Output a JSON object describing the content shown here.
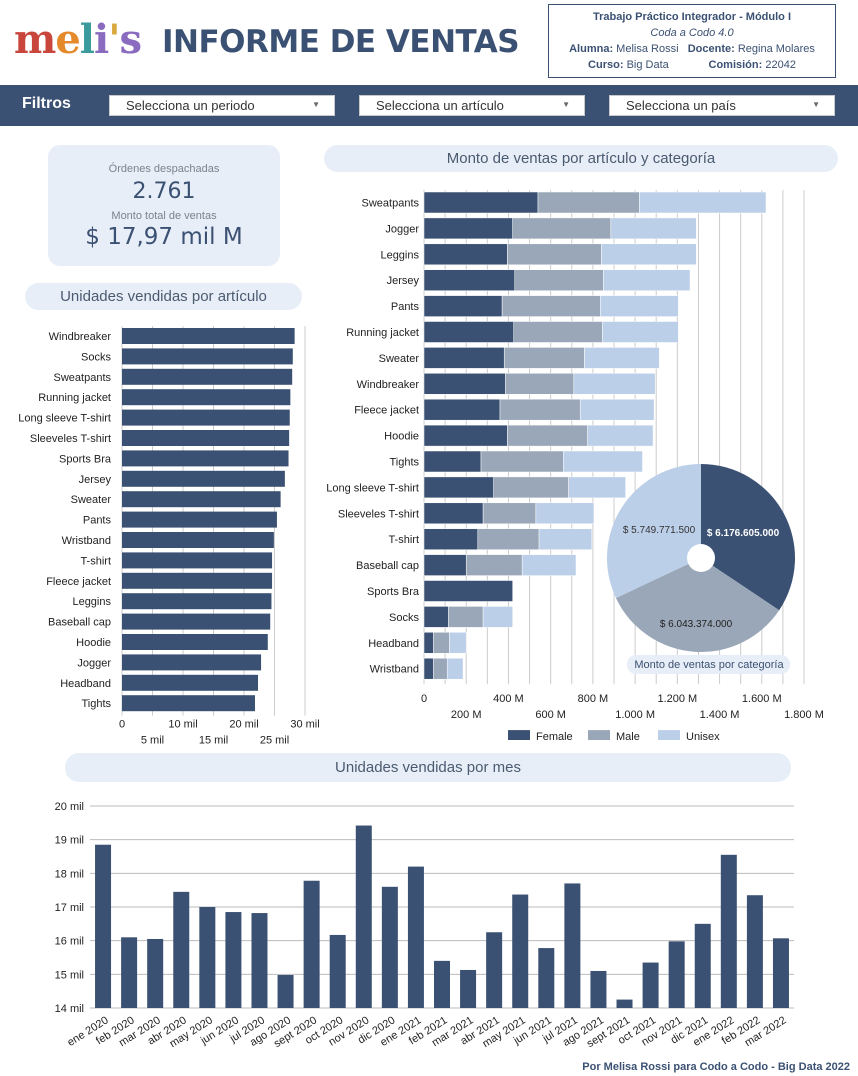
{
  "header": {
    "logo_text": "meli's",
    "title": "INFORME DE VENTAS",
    "info": {
      "line1": "Trabajo Práctico Integrador - Módulo I",
      "line2": "Coda a Codo 4.0",
      "alumna_label": "Alumna:",
      "alumna": "Melisa Rossi",
      "docente_label": "Docente:",
      "docente": "Regina Molares",
      "curso_label": "Curso:",
      "curso": "Big Data",
      "comision_label": "Comisión:",
      "comision": "22042"
    }
  },
  "filters": {
    "title": "Filtros",
    "period": "Selecciona un periodo",
    "article": "Selecciona un artículo",
    "country": "Selecciona un país"
  },
  "kpis": {
    "orders_label": "Órdenes despachadas",
    "orders_value": "2.761",
    "sales_label": "Monto total de ventas",
    "sales_value": "$ 17,97 mil M"
  },
  "colors": {
    "female": "#3b5173",
    "male": "#9aa7b8",
    "unisex": "#bccfe9",
    "accent": "#3b5173"
  },
  "chart_data": [
    {
      "type": "bar",
      "title": "Unidades vendidas por artículo",
      "orientation": "horizontal",
      "categories": [
        "Windbreaker",
        "Socks",
        "Sweatpants",
        "Running jacket",
        "Long sleeve T-shirt",
        "Sleeveles T-shirt",
        "Sports Bra",
        "Jersey",
        "Sweater",
        "Pants",
        "Wristband",
        "T-shirt",
        "Fleece jacket",
        "Leggins",
        "Baseball cap",
        "Hoodie",
        "Jogger",
        "Headband",
        "Tights"
      ],
      "values": [
        28300,
        28000,
        27900,
        27600,
        27500,
        27400,
        27300,
        26700,
        26000,
        25400,
        24900,
        24600,
        24600,
        24500,
        24300,
        23900,
        22800,
        22300,
        21800
      ],
      "xlim": [
        0,
        30000
      ],
      "ticks_upper": [
        "0",
        "10 mil",
        "20 mil",
        "30 mil"
      ],
      "ticks_lower": [
        "5 mil",
        "15 mil",
        "25 mil"
      ]
    },
    {
      "type": "bar",
      "stacked": true,
      "orientation": "horizontal",
      "title": "Monto de ventas por artículo y categoría",
      "categories": [
        "Sweatpants",
        "Jogger",
        "Leggins",
        "Jersey",
        "Pants",
        "Running jacket",
        "Sweater",
        "Windbreaker",
        "Fleece jacket",
        "Hoodie",
        "Tights",
        "Long sleeve T-shirt",
        "Sleeveles T-shirt",
        "T-shirt",
        "Baseball cap",
        "Sports Bra",
        "Socks",
        "Headband",
        "Wristband"
      ],
      "series": [
        {
          "name": "Female",
          "values": [
            540,
            420,
            395,
            430,
            370,
            425,
            380,
            385,
            360,
            395,
            270,
            330,
            280,
            255,
            200,
            420,
            115,
            45,
            45
          ]
        },
        {
          "name": "Male",
          "values": [
            480,
            465,
            445,
            420,
            465,
            420,
            380,
            325,
            380,
            380,
            390,
            355,
            250,
            290,
            265,
            0,
            165,
            75,
            65
          ]
        },
        {
          "name": "Unisex",
          "values": [
            600,
            405,
            450,
            410,
            370,
            360,
            355,
            385,
            350,
            310,
            375,
            270,
            275,
            250,
            255,
            0,
            140,
            80,
            75
          ]
        }
      ],
      "xlim": [
        0,
        1800
      ],
      "ticks_upper": [
        "0",
        "400 M",
        "800 M",
        "1.200 M",
        "1.600 M"
      ],
      "ticks_lower": [
        "200 M",
        "600 M",
        "1.000 M",
        "1.400 M",
        "1.800 M"
      ],
      "legend": [
        "Female",
        "Male",
        "Unisex"
      ],
      "legend_position": "bottom"
    },
    {
      "type": "pie",
      "title": "Monto de ventas por categoría",
      "labels": [
        "Female",
        "Male",
        "Unisex"
      ],
      "values": [
        6176605000,
        6043374000,
        5749771500
      ],
      "data_labels": [
        "$ 6.176.605.000",
        "$ 6.043.374.000",
        "$ 5.749.771.500"
      ],
      "donut": true
    },
    {
      "type": "bar",
      "title": "Unidades vendidas por mes",
      "categories": [
        "ene 2020",
        "feb 2020",
        "mar 2020",
        "abr 2020",
        "may 2020",
        "jun 2020",
        "jul 2020",
        "ago 2020",
        "sept 2020",
        "oct 2020",
        "nov 2020",
        "dic 2020",
        "ene 2021",
        "feb 2021",
        "mar 2021",
        "abr 2021",
        "may 2021",
        "jun 2021",
        "jul 2021",
        "ago 2021",
        "sept 2021",
        "oct 2021",
        "nov 2021",
        "dic 2021",
        "ene 2022",
        "feb 2022",
        "mar 2022"
      ],
      "values": [
        18.85,
        16.1,
        16.05,
        17.45,
        17.0,
        16.85,
        16.82,
        14.98,
        17.78,
        16.17,
        19.42,
        17.6,
        18.2,
        15.4,
        15.13,
        16.25,
        17.37,
        15.78,
        17.7,
        15.1,
        14.25,
        15.35,
        15.98,
        16.5,
        18.55,
        17.35,
        16.07
      ],
      "ylim": [
        14,
        20
      ],
      "ytick_labels": [
        "14 mil",
        "15 mil",
        "16 mil",
        "17 mil",
        "18 mil",
        "19 mil",
        "20 mil"
      ],
      "unit": "mil"
    }
  ],
  "footer": "Por Melisa Rossi para Codo a Codo - Big Data 2022"
}
